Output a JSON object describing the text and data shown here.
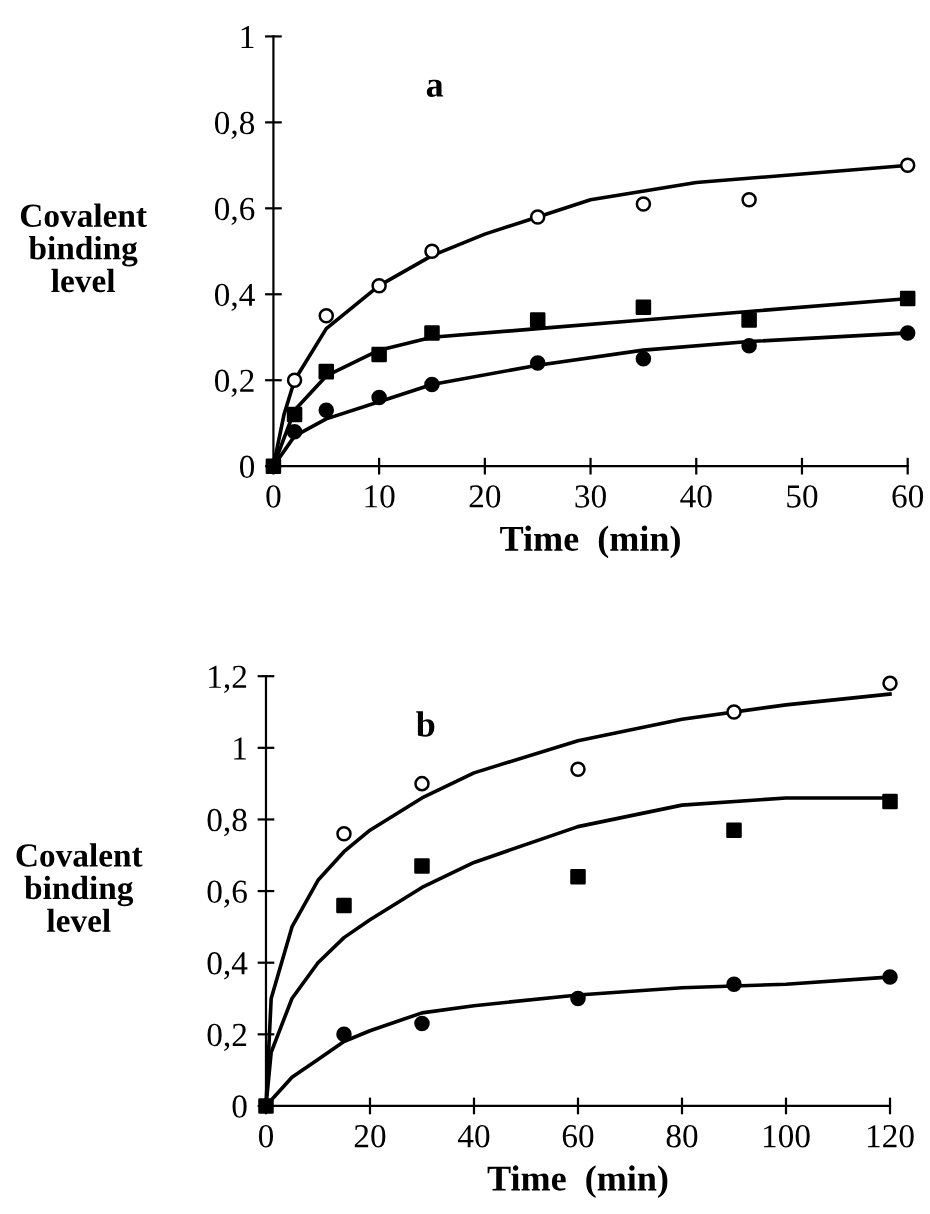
{
  "chart_data": [
    {
      "type": "scatter",
      "ylabel": "Covalent\nbinding\nlevel",
      "xlabel": "Time  (min)",
      "annotations": [
        "a"
      ],
      "grid": false,
      "legend": false,
      "xlim": [
        0,
        60
      ],
      "xticks": [
        0,
        10,
        20,
        30,
        40,
        50,
        60
      ],
      "ylim": [
        0,
        1
      ],
      "yticks": [
        0,
        {
          "value": 0.2,
          "label": "0,2"
        },
        {
          "value": 0.4,
          "label": "0,4"
        },
        {
          "value": 0.6,
          "label": "0,6"
        },
        {
          "value": 0.8,
          "label": "0,8"
        },
        1
      ],
      "series": [
        {
          "marker": "circle",
          "color": "#ffffff",
          "x": [
            2,
            5,
            10,
            15,
            25,
            35,
            45,
            60
          ],
          "values": [
            0.2,
            0.35,
            0.42,
            0.5,
            0.58,
            0.61,
            0.62,
            0.7
          ]
        },
        {
          "marker": "square",
          "color": "#000000",
          "x": [
            0,
            2,
            5,
            10,
            15,
            25,
            35,
            45,
            60
          ],
          "values": [
            0,
            0.12,
            0.22,
            0.26,
            0.31,
            0.34,
            0.37,
            0.34,
            0.39
          ]
        },
        {
          "marker": "circle",
          "color": "#000000",
          "x": [
            2,
            5,
            10,
            15,
            25,
            35,
            45,
            60
          ],
          "values": [
            0.08,
            0.13,
            0.16,
            0.19,
            0.24,
            0.25,
            0.28,
            0.31
          ]
        },
        {
          "type": "line",
          "color": "#000000",
          "x": [
            0,
            1,
            2,
            5,
            10,
            15,
            20,
            25,
            30,
            40,
            50,
            60
          ],
          "values": [
            0,
            0.12,
            0.2,
            0.32,
            0.42,
            0.49,
            0.54,
            0.58,
            0.62,
            0.66,
            0.68,
            0.7
          ]
        },
        {
          "type": "line",
          "color": "#000000",
          "x": [
            0,
            2,
            5,
            10,
            15,
            25,
            35,
            45,
            60
          ],
          "values": [
            0,
            0.13,
            0.21,
            0.27,
            0.3,
            0.32,
            0.34,
            0.36,
            0.39
          ]
        },
        {
          "type": "line",
          "color": "#000000",
          "x": [
            0,
            2,
            5,
            10,
            15,
            25,
            35,
            45,
            60
          ],
          "values": [
            0,
            0.07,
            0.11,
            0.15,
            0.19,
            0.235,
            0.27,
            0.29,
            0.31
          ]
        }
      ]
    },
    {
      "type": "scatter",
      "ylabel": "Covalent\nbinding\nlevel",
      "xlabel": "Time  (min)",
      "annotations": [
        "b"
      ],
      "grid": false,
      "legend": false,
      "xlim": [
        0,
        120
      ],
      "xticks": [
        0,
        20,
        40,
        60,
        80,
        100,
        120
      ],
      "ylim": [
        0,
        1.2
      ],
      "yticks": [
        0,
        {
          "value": 0.2,
          "label": "0,2"
        },
        {
          "value": 0.4,
          "label": "0,4"
        },
        {
          "value": 0.6,
          "label": "0,6"
        },
        {
          "value": 0.8,
          "label": "0,8"
        },
        1,
        {
          "value": 1.2,
          "label": "1,2"
        }
      ],
      "series": [
        {
          "marker": "circle",
          "color": "#ffffff",
          "x": [
            15,
            30,
            60,
            90,
            120
          ],
          "values": [
            0.76,
            0.9,
            0.94,
            1.1,
            1.18
          ]
        },
        {
          "marker": "square",
          "color": "#000000",
          "x": [
            0,
            15,
            30,
            60,
            90,
            120
          ],
          "values": [
            0,
            0.56,
            0.67,
            0.64,
            0.77,
            0.85
          ]
        },
        {
          "marker": "circle",
          "color": "#000000",
          "x": [
            15,
            30,
            60,
            90,
            120
          ],
          "values": [
            0.2,
            0.23,
            0.3,
            0.34,
            0.36
          ]
        },
        {
          "type": "line",
          "color": "#000000",
          "x": [
            0,
            1,
            5,
            10,
            15,
            20,
            30,
            40,
            60,
            80,
            100,
            120
          ],
          "values": [
            0,
            0.3,
            0.5,
            0.63,
            0.71,
            0.77,
            0.86,
            0.93,
            1.02,
            1.08,
            1.12,
            1.15
          ]
        },
        {
          "type": "line",
          "color": "#000000",
          "x": [
            0,
            1,
            5,
            10,
            15,
            20,
            30,
            40,
            60,
            80,
            100,
            120
          ],
          "values": [
            0,
            0.15,
            0.3,
            0.4,
            0.47,
            0.52,
            0.61,
            0.68,
            0.78,
            0.84,
            0.86,
            0.86
          ]
        },
        {
          "type": "line",
          "color": "#000000",
          "x": [
            0,
            5,
            10,
            15,
            20,
            30,
            40,
            60,
            80,
            100,
            120
          ],
          "values": [
            0,
            0.08,
            0.13,
            0.18,
            0.21,
            0.26,
            0.28,
            0.31,
            0.33,
            0.34,
            0.36
          ]
        }
      ]
    }
  ]
}
